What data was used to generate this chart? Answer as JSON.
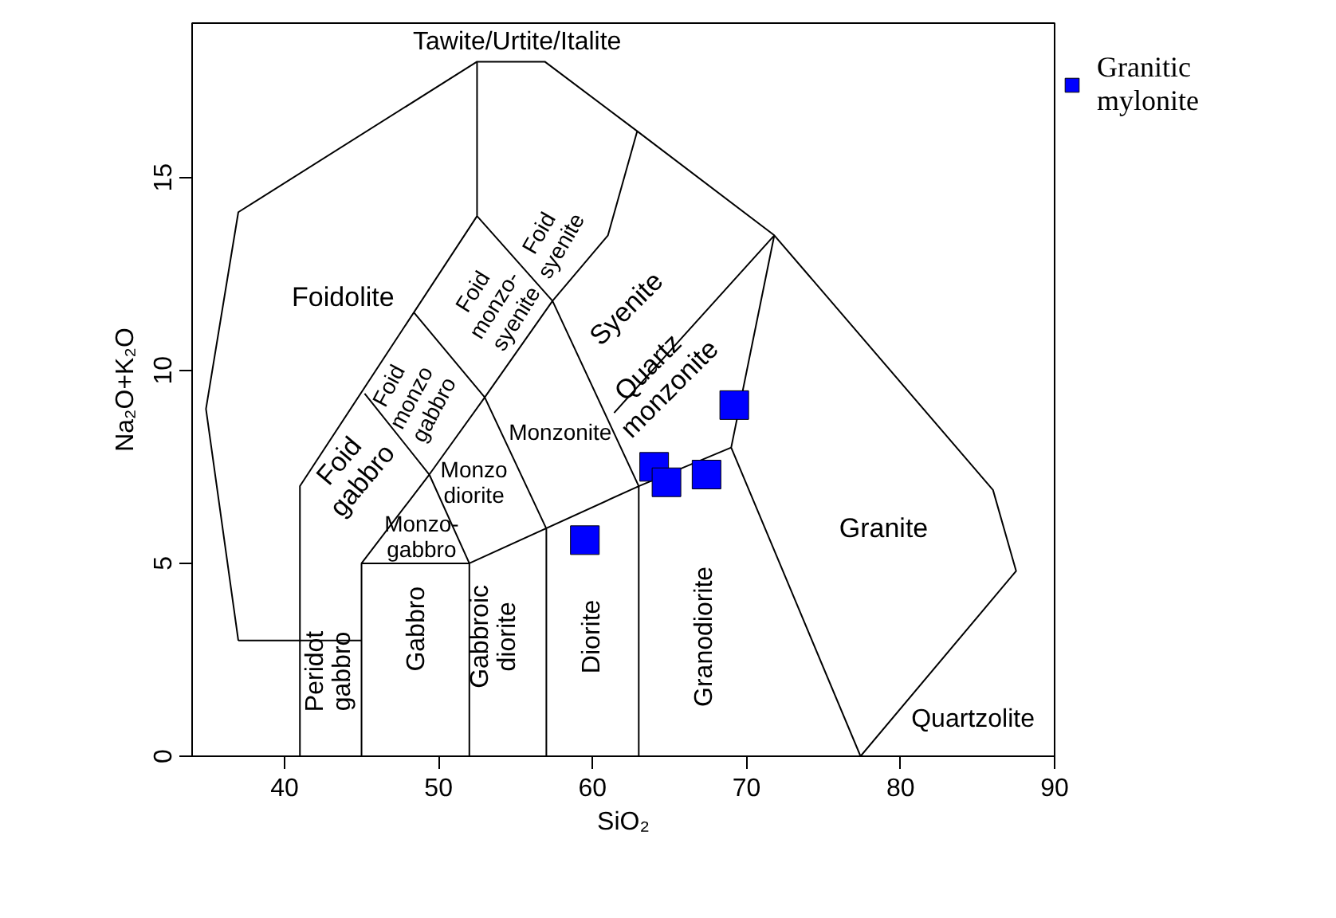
{
  "chart_data": {
    "type": "scatter",
    "xlabel": "SiO₂",
    "ylabel": "Na₂O+K₂O",
    "xlim": [
      34,
      90
    ],
    "ylim": [
      0,
      19
    ],
    "xticks": [
      40,
      50,
      60,
      70,
      80,
      90
    ],
    "yticks": [
      0,
      5,
      10,
      15
    ],
    "grid": false,
    "legend": "right",
    "series": [
      {
        "name": "Granitic mylonite",
        "color": "#0000ff",
        "marker": "square",
        "x": [
          69.2,
          64.0,
          64.8,
          67.4,
          59.5
        ],
        "values": [
          9.1,
          7.5,
          7.1,
          7.3,
          5.6
        ]
      },
      {
        "type": "line",
        "color": "#000000",
        "marker": "none",
        "x": [
          37,
          34.9,
          37,
          52.5,
          56.9,
          62.9,
          71.8,
          86,
          87.5,
          77.4,
          null,
          37,
          45,
          null,
          41,
          41,
          52.5,
          52.5,
          null,
          52.5,
          57.4,
          63,
          null,
          57.4,
          61,
          62.9,
          null,
          45,
          45,
          52,
          63,
          69,
          77.4,
          null,
          52,
          52,
          null,
          57,
          57,
          null,
          63,
          63,
          null,
          45,
          49.4,
          52,
          null,
          45.2,
          49.4,
          53,
          57,
          null,
          48.4,
          53,
          57.4,
          null,
          61.4,
          71.8,
          null,
          69,
          71.8
        ],
        "values": [
          3,
          9,
          14.1,
          18,
          18,
          16.2,
          13.5,
          6.9,
          4.8,
          0,
          null,
          3,
          3,
          null,
          0,
          7,
          14,
          18,
          null,
          14,
          11.8,
          7,
          null,
          11.8,
          13.5,
          16.2,
          null,
          0,
          5,
          5,
          7,
          8,
          0,
          null,
          0,
          5,
          null,
          0,
          5.9,
          null,
          0,
          7,
          null,
          5,
          7.3,
          5,
          null,
          9.4,
          7.3,
          9.3,
          5.9,
          null,
          11.5,
          9.3,
          11.8,
          null,
          8.9,
          13.5,
          null,
          8,
          13.5
        ]
      }
    ],
    "annotations": [
      "Tawite/Urtite/Italite",
      "Foidolite",
      "Foid\nsyenite",
      "Foid\nmonzo-\nsyenite",
      "Foid\nmonzo\ngabbro",
      "Foid\ngabbro",
      "Syenite",
      "Quartz\nmonzonite",
      "Monzonite",
      "Monzo\ndiorite",
      "Monzo-\ngabbro",
      "Peridot\ngabbro",
      "Gabbro",
      "Gabbroic\ndiorite",
      "Diorite",
      "Granodiorite",
      "Granite",
      "Quartzolite"
    ]
  }
}
